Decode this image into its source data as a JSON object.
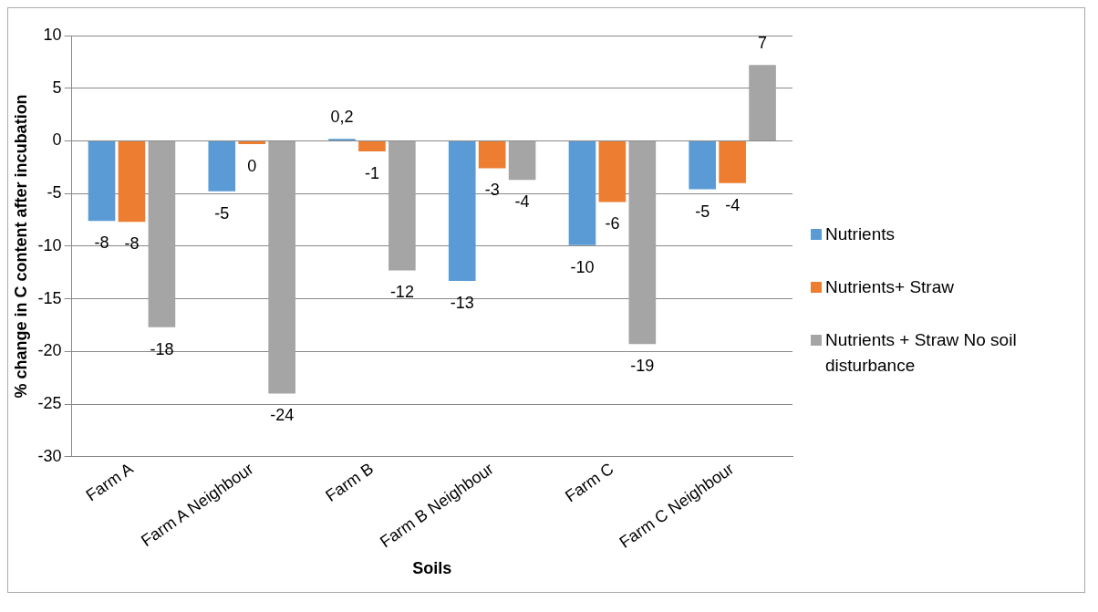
{
  "chart_data": {
    "type": "bar",
    "xlabel": "Soils",
    "ylabel": "% change in C content after incubation",
    "categories": [
      "Farm A",
      "Farm A Neighbour",
      "Farm B",
      "Farm B Neighbour",
      "Farm C",
      "Farm C Neighbour"
    ],
    "series": [
      {
        "name": "Nutrients",
        "color": "#5b9bd5",
        "values": [
          -7.6,
          -4.8,
          0.2,
          -13.3,
          -9.9,
          -4.6
        ],
        "value_labels": [
          "-8",
          "-5",
          "0,2",
          "-13",
          "-10",
          "-5"
        ]
      },
      {
        "name": "Nutrients+ Straw",
        "color": "#ed7d31",
        "values": [
          -7.7,
          -0.3,
          -1.0,
          -2.6,
          -5.8,
          -4.0
        ],
        "value_labels": [
          "-8",
          "0",
          "-1",
          "-3",
          "-6",
          "-4"
        ]
      },
      {
        "name": "Nutrients + Straw No soil disturbance",
        "color": "#a5a5a5",
        "values": [
          -17.7,
          -24.0,
          -12.3,
          -3.7,
          -19.3,
          7.2
        ],
        "value_labels": [
          "-18",
          "-24",
          "-12",
          "-4",
          "-19",
          "7"
        ]
      }
    ],
    "ylim": [
      -30,
      10
    ],
    "yticks": [
      -30,
      -25,
      -20,
      -15,
      -10,
      -5,
      0,
      5,
      10
    ],
    "grid": "y",
    "legend": "right"
  }
}
